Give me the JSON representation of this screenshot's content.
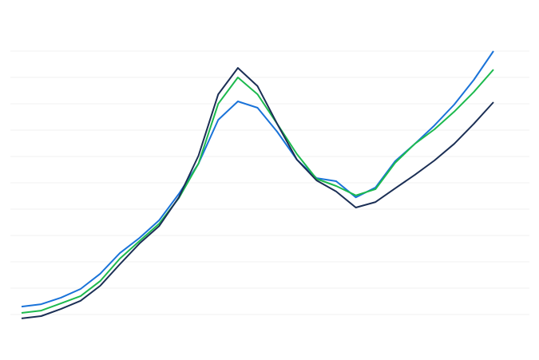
{
  "chart_data": {
    "type": "line",
    "categories": [
      null,
      null,
      null,
      null,
      null,
      null,
      null,
      null,
      null,
      null,
      null,
      null,
      null,
      null,
      null,
      null,
      null,
      null,
      null,
      null,
      null,
      null,
      null,
      null,
      null
    ],
    "series": [
      {
        "color": "#1a73d9",
        "values": [
          0.3,
          0.39,
          0.64,
          0.97,
          1.55,
          2.33,
          2.91,
          3.58,
          4.58,
          5.73,
          7.39,
          8.09,
          7.85,
          6.94,
          5.88,
          5.18,
          5.06,
          4.45,
          4.82,
          5.82,
          6.48,
          7.18,
          7.97,
          8.91,
          10.0
        ]
      },
      {
        "color": "#1dba4e",
        "values": [
          0.06,
          0.15,
          0.42,
          0.7,
          1.27,
          2.12,
          2.79,
          3.45,
          4.42,
          5.73,
          8.0,
          9.0,
          8.36,
          7.24,
          6.09,
          5.15,
          4.88,
          4.52,
          4.76,
          5.76,
          6.48,
          7.03,
          7.7,
          8.45,
          9.3
        ]
      },
      {
        "color": "#1b2f55",
        "values": [
          -0.15,
          -0.06,
          0.21,
          0.52,
          1.09,
          1.91,
          2.7,
          3.36,
          4.45,
          6.03,
          8.36,
          9.36,
          8.67,
          7.24,
          5.88,
          5.09,
          4.67,
          4.06,
          4.27,
          4.79,
          5.3,
          5.85,
          6.48,
          7.24,
          8.06
        ]
      }
    ],
    "ylim": [
      -1,
      11
    ],
    "yticks": [
      0,
      1,
      2,
      3,
      4,
      5,
      6,
      7,
      8,
      9,
      10
    ],
    "grid": true
  }
}
